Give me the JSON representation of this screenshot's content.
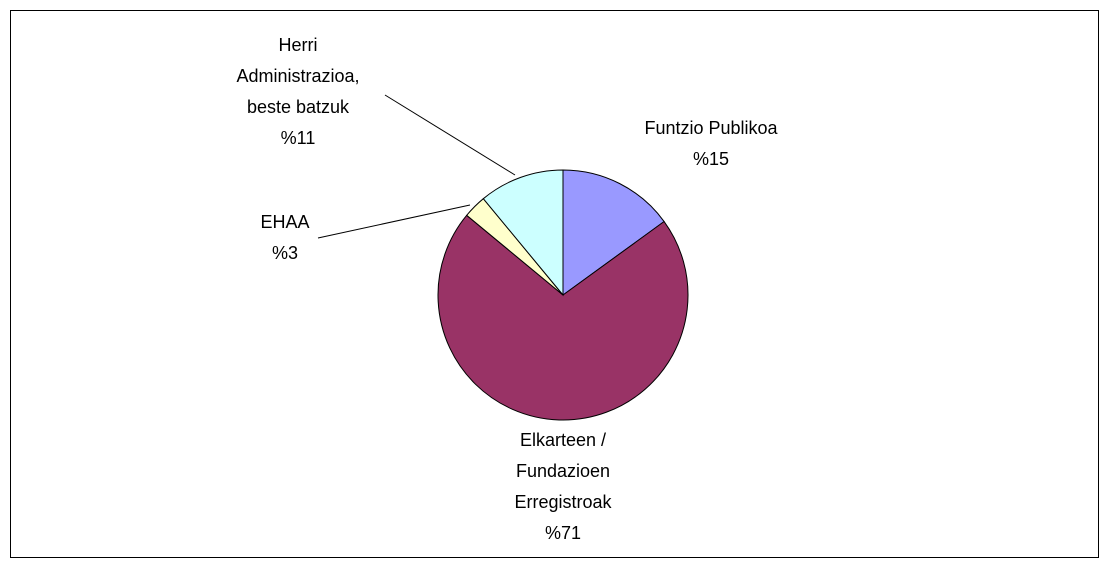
{
  "chart_data": {
    "type": "pie",
    "categories": [
      "Funtzio Publikoa",
      "Elkarteen / Fundazioen Erregistroak",
      "EHAA",
      "Herri Administrazioa, beste batzuk"
    ],
    "values": [
      15,
      71,
      3,
      11
    ],
    "value_labels": [
      "%15",
      "%71",
      "%3",
      "%11"
    ],
    "colors": [
      "#9999ff",
      "#993366",
      "#ffffcc",
      "#ccffff"
    ]
  }
}
